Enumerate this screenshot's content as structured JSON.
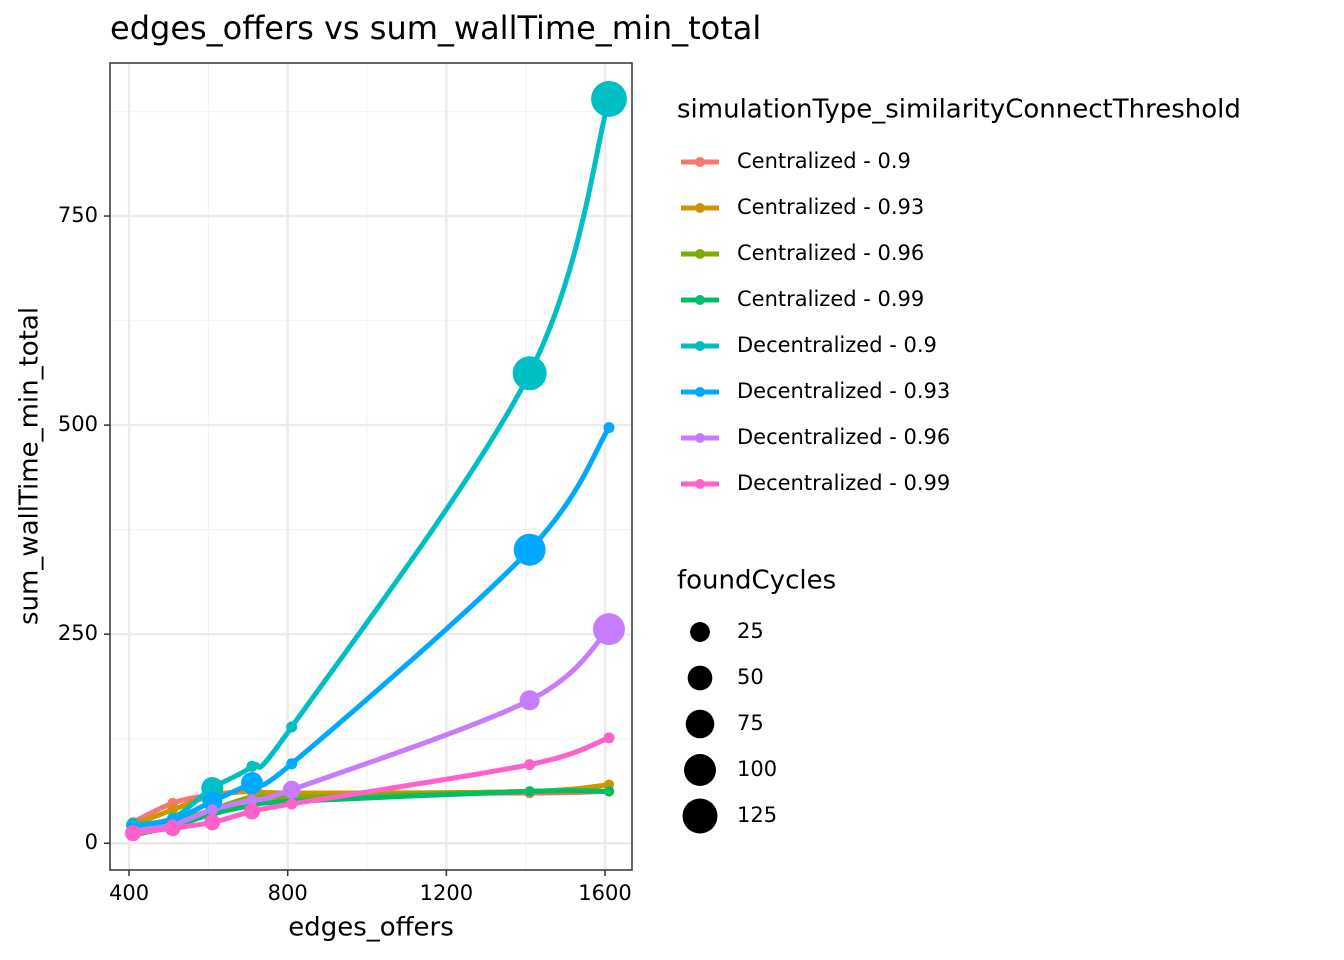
{
  "chart_data": {
    "type": "scatter-smooth",
    "title": "edges_offers  vs  sum_wallTime_min_total",
    "x_label": "edges_offers",
    "y_label": "sum_wallTime_min_total",
    "legend_title": "simulationType_similarityConnectThreshold",
    "x": [
      410,
      510,
      610,
      710,
      810,
      1410,
      1610
    ],
    "xlim": [
      352,
      1668
    ],
    "xticks": [
      400,
      800,
      1200,
      1600
    ],
    "ylim": [
      -32,
      933
    ],
    "yticks": [
      0,
      250,
      500,
      750
    ],
    "grid": true,
    "legend": "right",
    "size_legend": {
      "title": "foundCycles",
      "values": [
        25,
        50,
        75,
        100,
        125
      ]
    },
    "series": [
      {
        "name": "Centralized - 0.9",
        "color": "#F8766D",
        "values": [
          25,
          48,
          58,
          62,
          60,
          60,
          62
        ],
        "sizes": [
          1,
          1,
          1,
          1,
          1,
          1,
          1
        ]
      },
      {
        "name": "Centralized - 0.93",
        "color": "#CD9600",
        "values": [
          22,
          40,
          57,
          62,
          60,
          62,
          70
        ],
        "sizes": [
          1,
          1,
          1,
          1,
          1,
          1,
          1
        ]
      },
      {
        "name": "Centralized - 0.96",
        "color": "#7CAE00",
        "values": [
          12,
          25,
          40,
          55,
          55,
          62,
          62
        ],
        "sizes": [
          1,
          1,
          1,
          1,
          1,
          1,
          1
        ]
      },
      {
        "name": "Centralized - 0.99",
        "color": "#00BE67",
        "values": [
          10,
          20,
          35,
          45,
          50,
          62,
          62
        ],
        "sizes": [
          1,
          1,
          1,
          1,
          1,
          1,
          1
        ]
      },
      {
        "name": "Decentralized - 0.9",
        "color": "#00BFC4",
        "values": [
          22,
          30,
          66,
          92,
          139,
          562,
          890
        ],
        "sizes": [
          13,
          3,
          52,
          3,
          3,
          143,
          160
        ]
      },
      {
        "name": "Decentralized - 0.93",
        "color": "#00A9FF",
        "values": [
          20,
          28,
          50,
          72,
          95,
          351,
          497
        ],
        "sizes": [
          3,
          3,
          40,
          52,
          3,
          125,
          3
        ]
      },
      {
        "name": "Decentralized - 0.96",
        "color": "#C77CFF",
        "values": [
          15,
          22,
          40,
          52,
          64,
          171,
          256
        ],
        "sizes": [
          3,
          3,
          3,
          3,
          30,
          41,
          125
        ]
      },
      {
        "name": "Decentralized - 0.99",
        "color": "#FF61CC",
        "values": [
          12,
          18,
          25,
          38,
          47,
          94,
          126
        ],
        "sizes": [
          21,
          21,
          21,
          21,
          3,
          3,
          3
        ]
      }
    ]
  }
}
